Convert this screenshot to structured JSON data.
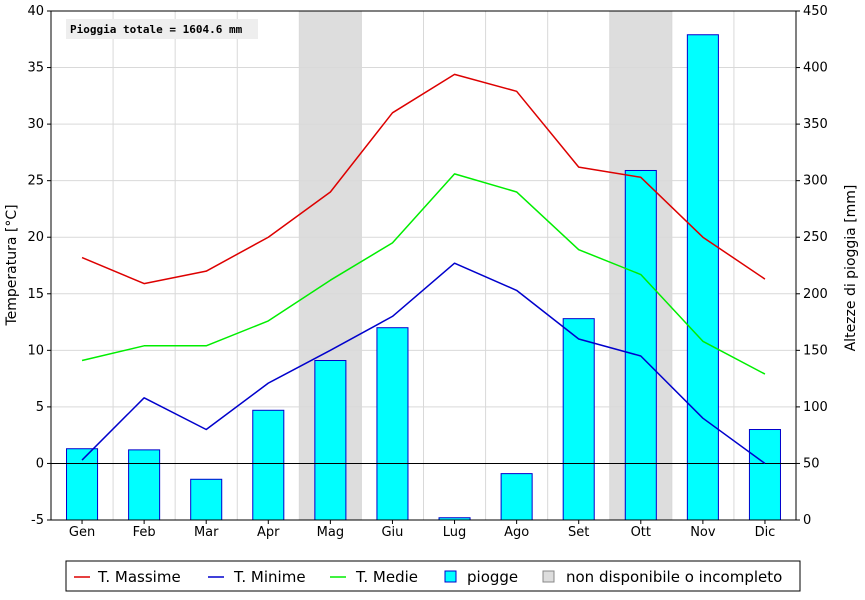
{
  "chart_data": {
    "type": "bar+line",
    "annotation": "Pioggia totale = 1604.6 mm",
    "ylabel_left": "Temperatura [°C]",
    "ylabel_right": "Altezze di pioggia [mm]",
    "categories": [
      "Gen",
      "Feb",
      "Mar",
      "Apr",
      "Mag",
      "Giu",
      "Lug",
      "Ago",
      "Set",
      "Ott",
      "Nov",
      "Dic"
    ],
    "ylim_left": [
      -5,
      40
    ],
    "yticks_left": [
      "-5",
      "0",
      "5",
      "10",
      "15",
      "20",
      "25",
      "30",
      "35",
      "40"
    ],
    "ylim_right": [
      0,
      450
    ],
    "yticks_right": [
      "0",
      "50",
      "100",
      "150",
      "200",
      "250",
      "300",
      "350",
      "400",
      "450"
    ],
    "grid": true,
    "zero_line": true,
    "series": [
      {
        "name": "T. Massime",
        "axis": "left",
        "kind": "line",
        "color": "#dd0000",
        "values": [
          18.2,
          15.9,
          17.0,
          20.0,
          24.0,
          31.0,
          34.4,
          32.9,
          26.2,
          25.3,
          20.0,
          16.3
        ]
      },
      {
        "name": "T. Minime",
        "axis": "left",
        "kind": "line",
        "color": "#0000cc",
        "values": [
          0.3,
          5.8,
          3.0,
          7.1,
          10.0,
          13.0,
          17.7,
          15.3,
          11.0,
          9.5,
          4.0,
          0.0
        ]
      },
      {
        "name": "T. Medie",
        "axis": "left",
        "kind": "line",
        "color": "#00ee00",
        "values": [
          9.1,
          10.4,
          10.4,
          12.6,
          16.2,
          19.5,
          25.6,
          24.0,
          18.9,
          16.7,
          10.8,
          7.9
        ]
      },
      {
        "name": "piogge",
        "axis": "right",
        "kind": "bar",
        "color": "#00ffff",
        "edge": "#0000cc",
        "values": [
          63,
          62,
          36,
          97,
          141,
          170,
          2,
          41,
          178,
          309,
          429,
          80
        ]
      }
    ],
    "unavailable_months": [
      "Mag",
      "Ott"
    ],
    "unavailable_label": "non disponibile o incompleto",
    "unavailable_color": "#dddddd",
    "legend_position": "bottom"
  }
}
